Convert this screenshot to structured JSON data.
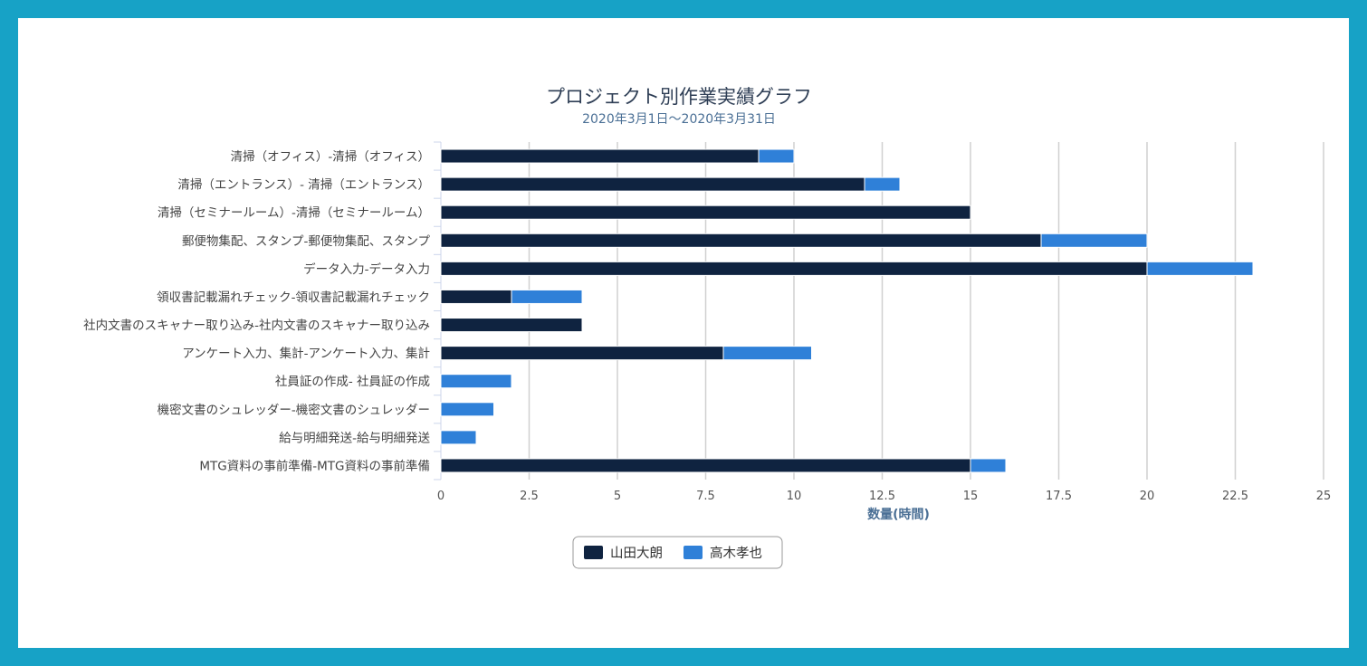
{
  "chart_data": {
    "type": "bar",
    "orientation": "horizontal",
    "stacked": true,
    "title": "プロジェクト別作業実績グラフ",
    "subtitle": "2020年3月1日～2020年3月31日",
    "xlabel": "数量(時間)",
    "ylabel": "",
    "xlim": [
      0,
      25
    ],
    "xticks": [
      "0",
      "2.5",
      "5",
      "7.5",
      "10",
      "12.5",
      "15",
      "17.5",
      "20",
      "22.5",
      "25"
    ],
    "xtick_values": [
      0,
      2.5,
      5,
      7.5,
      10,
      12.5,
      15,
      17.5,
      20,
      22.5,
      25
    ],
    "grid": true,
    "legend_position": "bottom",
    "categories": [
      "清掃（オフィス）-清掃（オフィス）",
      "清掃（エントランス）- 清掃（エントランス）",
      "清掃（セミナールーム）-清掃（セミナールーム）",
      "郵便物集配、スタンプ-郵便物集配、スタンプ",
      "データ入力-データ入力",
      "領収書記載漏れチェック-領収書記載漏れチェック",
      "社内文書のスキャナー取り込み-社内文書のスキャナー取り込み",
      "アンケート入力、集計-アンケート入力、集計",
      "社員証の作成- 社員証の作成",
      "機密文書のシュレッダー-機密文書のシュレッダー",
      "給与明細発送-給与明細発送",
      "MTG資料の事前準備-MTG資料の事前準備"
    ],
    "series": [
      {
        "name": "山田大朗",
        "color": "#0f2340",
        "values": [
          9,
          12,
          15,
          17,
          20,
          2,
          4,
          8,
          0,
          0,
          0,
          15
        ]
      },
      {
        "name": "高木孝也",
        "color": "#2f80d8",
        "values": [
          1,
          1,
          0,
          3,
          3,
          2,
          0,
          2.5,
          2,
          1.5,
          1,
          1
        ]
      }
    ]
  },
  "colors": {
    "frame": "#17a2c6",
    "title": "#2e3e55",
    "subtitle": "#4a6f95",
    "axis_title": "#4a6f95"
  }
}
